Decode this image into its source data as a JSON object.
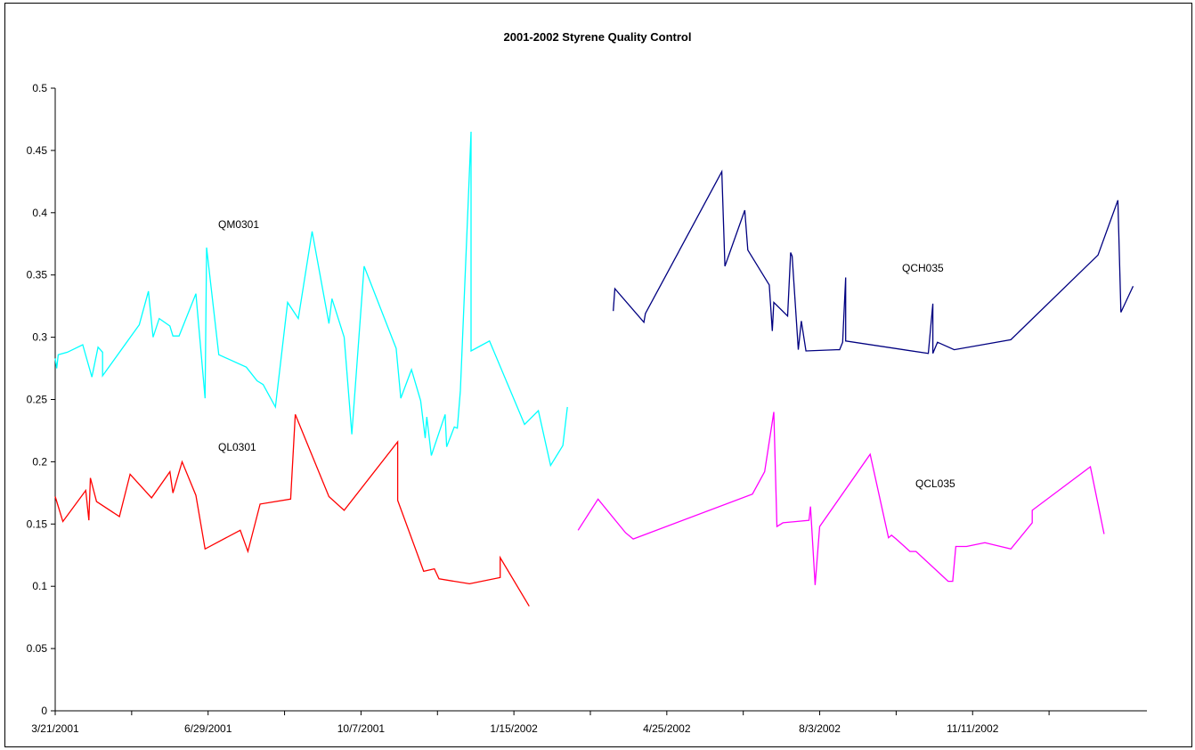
{
  "chart_data": {
    "type": "line",
    "title": "2001-2002 Styrene Quality Control",
    "xlabel": "",
    "ylabel": "",
    "ylim": [
      0,
      0.5
    ],
    "xlim": [
      "2001-03-21",
      "2003-03-05"
    ],
    "grid": false,
    "legend": "none",
    "y_ticks": [
      "0",
      "0.05",
      "0.1",
      "0.15",
      "0.2",
      "0.25",
      "0.3",
      "0.35",
      "0.4",
      "0.45",
      "0.5"
    ],
    "x_ticks": [
      "3/21/2001",
      "6/29/2001",
      "10/7/2001",
      "1/15/2002",
      "4/25/2002",
      "8/3/2002",
      "11/11/2002"
    ],
    "series": [
      {
        "name": "QM0301",
        "color": "#00FFFF",
        "points": [
          [
            "2001-03-21",
            0.283
          ],
          [
            "2001-03-22",
            0.275
          ],
          [
            "2001-03-23",
            0.286
          ],
          [
            "2001-03-29",
            0.288
          ],
          [
            "2001-04-08",
            0.294
          ],
          [
            "2001-04-14",
            0.268
          ],
          [
            "2001-04-18",
            0.292
          ],
          [
            "2001-04-21",
            0.288
          ],
          [
            "2001-04-21",
            0.269
          ],
          [
            "2001-05-15",
            0.31
          ],
          [
            "2001-05-21",
            0.337
          ],
          [
            "2001-05-24",
            0.3
          ],
          [
            "2001-05-28",
            0.315
          ],
          [
            "2001-06-04",
            0.309
          ],
          [
            "2001-06-06",
            0.301
          ],
          [
            "2001-06-10",
            0.301
          ],
          [
            "2001-06-21",
            0.335
          ],
          [
            "2001-06-27",
            0.251
          ],
          [
            "2001-06-28",
            0.372
          ],
          [
            "2001-07-06",
            0.286
          ],
          [
            "2001-07-24",
            0.276
          ],
          [
            "2001-07-31",
            0.265
          ],
          [
            "2001-08-04",
            0.262
          ],
          [
            "2001-08-12",
            0.244
          ],
          [
            "2001-08-20",
            0.328
          ],
          [
            "2001-08-27",
            0.315
          ],
          [
            "2001-09-05",
            0.385
          ],
          [
            "2001-09-16",
            0.311
          ],
          [
            "2001-09-18",
            0.331
          ],
          [
            "2001-09-26",
            0.3
          ],
          [
            "2001-10-01",
            0.222
          ],
          [
            "2001-10-09",
            0.357
          ],
          [
            "2001-10-30",
            0.291
          ],
          [
            "2001-11-02",
            0.251
          ],
          [
            "2001-11-09",
            0.274
          ],
          [
            "2001-11-15",
            0.249
          ],
          [
            "2001-11-18",
            0.219
          ],
          [
            "2001-11-19",
            0.236
          ],
          [
            "2001-11-22",
            0.205
          ],
          [
            "2001-12-01",
            0.238
          ],
          [
            "2001-12-02",
            0.212
          ],
          [
            "2001-12-07",
            0.228
          ],
          [
            "2001-12-09",
            0.227
          ],
          [
            "2001-12-11",
            0.257
          ],
          [
            "2001-12-16",
            0.405
          ],
          [
            "2001-12-18",
            0.465
          ],
          [
            "2001-12-18",
            0.289
          ],
          [
            "2001-12-30",
            0.297
          ],
          [
            "2002-01-22",
            0.23
          ],
          [
            "2002-01-31",
            0.241
          ],
          [
            "2002-02-08",
            0.197
          ],
          [
            "2002-02-16",
            0.213
          ],
          [
            "2002-02-19",
            0.244
          ]
        ]
      },
      {
        "name": "QL0301",
        "color": "#FF0000",
        "points": [
          [
            "2001-03-21",
            0.172
          ],
          [
            "2001-03-26",
            0.152
          ],
          [
            "2001-04-10",
            0.177
          ],
          [
            "2001-04-12",
            0.153
          ],
          [
            "2001-04-13",
            0.187
          ],
          [
            "2001-04-17",
            0.168
          ],
          [
            "2001-05-02",
            0.156
          ],
          [
            "2001-05-09",
            0.19
          ],
          [
            "2001-05-23",
            0.171
          ],
          [
            "2001-06-04",
            0.192
          ],
          [
            "2001-06-06",
            0.175
          ],
          [
            "2001-06-12",
            0.2
          ],
          [
            "2001-06-21",
            0.173
          ],
          [
            "2001-06-27",
            0.13
          ],
          [
            "2001-07-20",
            0.145
          ],
          [
            "2001-07-25",
            0.128
          ],
          [
            "2001-08-02",
            0.166
          ],
          [
            "2001-08-22",
            0.17
          ],
          [
            "2001-08-25",
            0.238
          ],
          [
            "2001-09-16",
            0.172
          ],
          [
            "2001-09-26",
            0.161
          ],
          [
            "2001-10-31",
            0.216
          ],
          [
            "2001-10-31",
            0.169
          ],
          [
            "2001-11-17",
            0.112
          ],
          [
            "2001-11-24",
            0.114
          ],
          [
            "2001-11-27",
            0.106
          ],
          [
            "2001-12-17",
            0.102
          ],
          [
            "2002-01-06",
            0.107
          ],
          [
            "2002-01-06",
            0.123
          ],
          [
            "2002-01-25",
            0.084
          ]
        ]
      },
      {
        "name": "QCH035",
        "color": "#000080",
        "points": [
          [
            "2002-03-21",
            0.321
          ],
          [
            "2002-03-22",
            0.339
          ],
          [
            "2002-04-10",
            0.312
          ],
          [
            "2002-04-11",
            0.319
          ],
          [
            "2002-05-31",
            0.433
          ],
          [
            "2002-06-02",
            0.357
          ],
          [
            "2002-06-15",
            0.402
          ],
          [
            "2002-06-17",
            0.37
          ],
          [
            "2002-07-01",
            0.342
          ],
          [
            "2002-07-03",
            0.305
          ],
          [
            "2002-07-04",
            0.328
          ],
          [
            "2002-07-13",
            0.317
          ],
          [
            "2002-07-15",
            0.368
          ],
          [
            "2002-07-16",
            0.365
          ],
          [
            "2002-07-20",
            0.29
          ],
          [
            "2002-07-22",
            0.313
          ],
          [
            "2002-07-25",
            0.289
          ],
          [
            "2002-08-14",
            0.29
          ],
          [
            "2002-08-16",
            0.29
          ],
          [
            "2002-08-18",
            0.296
          ],
          [
            "2002-08-20",
            0.348
          ],
          [
            "2002-08-20",
            0.297
          ],
          [
            "2002-10-13",
            0.287
          ],
          [
            "2002-10-16",
            0.327
          ],
          [
            "2002-10-16",
            0.287
          ],
          [
            "2002-10-19",
            0.296
          ],
          [
            "2002-10-30",
            0.29
          ],
          [
            "2002-12-06",
            0.298
          ],
          [
            "2003-02-01",
            0.366
          ],
          [
            "2003-02-14",
            0.41
          ],
          [
            "2003-02-16",
            0.32
          ],
          [
            "2003-02-24",
            0.341
          ]
        ]
      },
      {
        "name": "QCL035",
        "color": "#FF00FF",
        "points": [
          [
            "2002-02-26",
            0.145
          ],
          [
            "2002-03-11",
            0.17
          ],
          [
            "2002-03-29",
            0.143
          ],
          [
            "2002-04-03",
            0.138
          ],
          [
            "2002-06-20",
            0.174
          ],
          [
            "2002-06-28",
            0.192
          ],
          [
            "2002-07-04",
            0.24
          ],
          [
            "2002-07-06",
            0.148
          ],
          [
            "2002-07-10",
            0.151
          ],
          [
            "2002-07-27",
            0.153
          ],
          [
            "2002-07-28",
            0.164
          ],
          [
            "2002-07-31",
            0.101
          ],
          [
            "2002-08-03",
            0.148
          ],
          [
            "2002-09-05",
            0.206
          ],
          [
            "2002-09-17",
            0.139
          ],
          [
            "2002-09-19",
            0.141
          ],
          [
            "2002-09-22",
            0.138
          ],
          [
            "2002-10-01",
            0.128
          ],
          [
            "2002-10-05",
            0.128
          ],
          [
            "2002-10-26",
            0.104
          ],
          [
            "2002-10-29",
            0.104
          ],
          [
            "2002-10-31",
            0.132
          ],
          [
            "2002-11-07",
            0.132
          ],
          [
            "2002-11-19",
            0.135
          ],
          [
            "2002-12-06",
            0.13
          ],
          [
            "2002-12-20",
            0.151
          ],
          [
            "2002-12-20",
            0.161
          ],
          [
            "2003-01-27",
            0.196
          ],
          [
            "2003-02-05",
            0.142
          ]
        ]
      }
    ]
  }
}
